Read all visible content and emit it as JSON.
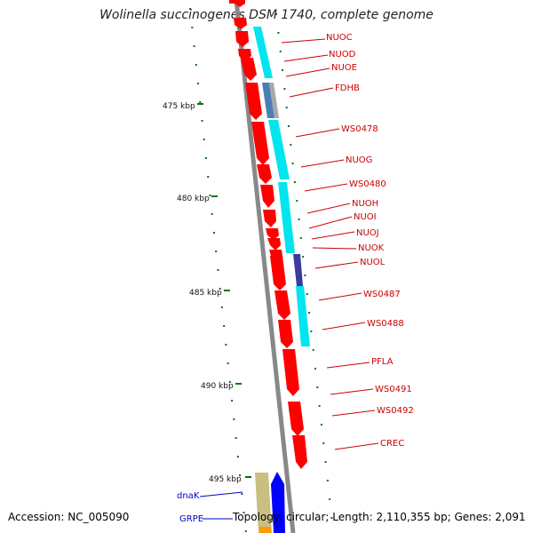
{
  "title": "Wolinella succinogenes DSM 1740, complete genome",
  "accession_label": "Accession: NC_005090",
  "topology_label": "Topology: circular; Length: 2,110,355 bp; Genes: 2,091",
  "colors": {
    "backbone": "#888888",
    "gene": "#ff0000",
    "cog_cyan": "#00e5ee",
    "cog_blue": "#4a7fb5",
    "cog_grey": "#a9a9a9",
    "cog_purple": "#3a3aa0",
    "cog_tan": "#c8bf80",
    "label_red": "#cc0000",
    "label_blue": "#0000cc",
    "tick": "#007700"
  },
  "kbp_ticks": [
    "475 kbp",
    "480 kbp",
    "485 kbp",
    "490 kbp",
    "495 kbp"
  ],
  "gene_labels": [
    "NUOC",
    "NUOD",
    "NUOE",
    "FDHB",
    "WS0478",
    "NUOG",
    "WS0480",
    "NUOH",
    "NUOI",
    "NUOJ",
    "NUOK",
    "NUOL",
    "WS0487",
    "WS0488",
    "PFLA",
    "WS0491",
    "WS0492",
    "CREC"
  ],
  "other_labels": [
    "dnaK",
    "GRPE"
  ]
}
